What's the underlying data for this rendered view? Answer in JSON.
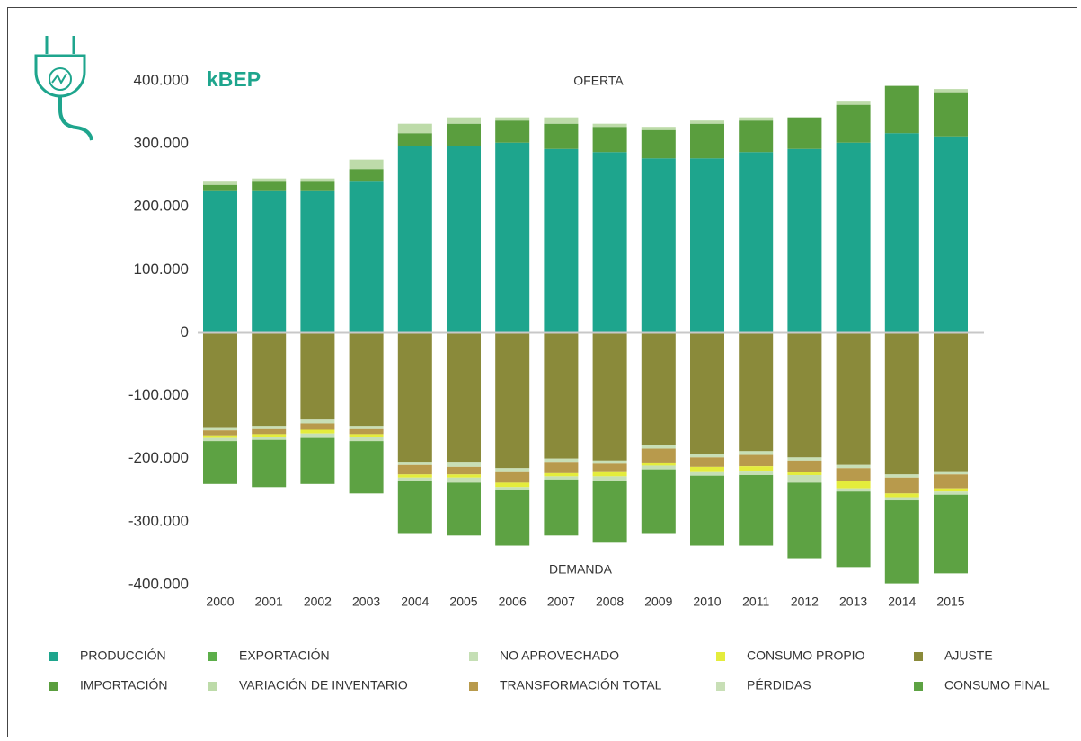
{
  "chart_data": {
    "type": "bar",
    "title": "kBEP",
    "annotations": [
      "OFERTA",
      "DEMANDA"
    ],
    "categories": [
      "2000",
      "2001",
      "2002",
      "2003",
      "2004",
      "2005",
      "2006",
      "2007",
      "2008",
      "2009",
      "2010",
      "2011",
      "2012",
      "2013",
      "2014",
      "2015"
    ],
    "ylim": [
      -400000,
      400000
    ],
    "yticks": [
      {
        "value": 400000,
        "label": "400.000"
      },
      {
        "value": 300000,
        "label": "300.000"
      },
      {
        "value": 200000,
        "label": "200.000"
      },
      {
        "value": 100000,
        "label": "100.000"
      },
      0,
      {
        "value": -100000,
        "label": "-100.000"
      },
      {
        "value": -200000,
        "label": "-200.000"
      },
      {
        "value": -300000,
        "label": "-300.000"
      },
      {
        "value": -400000,
        "label": "-400.000"
      }
    ],
    "series": [
      {
        "name": "PRODUCCIÓN",
        "color": "#1ea58d",
        "values": [
          225000,
          225000,
          225000,
          240000,
          297000,
          297000,
          302000,
          292000,
          287000,
          277000,
          277000,
          287000,
          292000,
          302000,
          317000,
          312000
        ]
      },
      {
        "name": "IMPORTACIÓN",
        "color": "#5a9e3e",
        "values": [
          10000,
          15000,
          15000,
          20000,
          20000,
          35000,
          35000,
          40000,
          40000,
          45000,
          55000,
          50000,
          50000,
          60000,
          75000,
          70000
        ]
      },
      {
        "name": "VARIACIÓN DE INVENTARIO",
        "color": "#bddba9",
        "values": [
          5000,
          5000,
          5000,
          15000,
          15000,
          10000,
          5000,
          10000,
          5000,
          5000,
          5000,
          5000,
          0,
          5000,
          0,
          5000
        ]
      },
      {
        "name": "AJUSTE",
        "color": "#8a8a3a",
        "values": [
          -150000,
          -148000,
          -138000,
          -148000,
          -205000,
          -205000,
          -215000,
          -200000,
          -203000,
          -178000,
          -193000,
          -188000,
          -198000,
          -210000,
          -225000,
          -220000
        ]
      },
      {
        "name": "PÉRDIDAS",
        "color": "#c8dfb6",
        "values": [
          -5000,
          -5000,
          -6000,
          -5000,
          -5000,
          -8000,
          -5000,
          -5000,
          -5000,
          -6000,
          -5000,
          -6000,
          -5000,
          -5000,
          -5000,
          -5000
        ]
      },
      {
        "name": "TRANSFORMACIÓN TOTAL",
        "color": "#b89a4c",
        "values": [
          -8000,
          -8000,
          -10000,
          -8000,
          -15000,
          -12000,
          -18000,
          -18000,
          -12000,
          -22000,
          -15000,
          -18000,
          -18000,
          -20000,
          -25000,
          -22000
        ]
      },
      {
        "name": "CONSUMO PROPIO",
        "color": "#e4ec3c",
        "values": [
          -4000,
          -4000,
          -6000,
          -5000,
          -5000,
          -5000,
          -7000,
          -5000,
          -8000,
          -5000,
          -7000,
          -7000,
          -5000,
          -12000,
          -6000,
          -5000
        ]
      },
      {
        "name": "NO APROVECHADO",
        "color": "#c5dfb5",
        "values": [
          -5000,
          -5000,
          -7000,
          -6000,
          -5000,
          -8000,
          -5000,
          -5000,
          -8000,
          -6000,
          -7000,
          -7000,
          -12000,
          -5000,
          -5000,
          -5000
        ]
      },
      {
        "name": "EXPORTACIÓN",
        "color": "#5cae4a",
        "values": [
          null,
          null,
          null,
          null,
          null,
          null,
          null,
          null,
          null,
          null,
          null,
          null,
          null,
          null,
          null,
          null
        ]
      },
      {
        "name": "CONSUMO FINAL",
        "color": "#5da243",
        "values": [
          -68000,
          -75000,
          -73000,
          -83000,
          -83000,
          -84000,
          -88000,
          -89000,
          -96000,
          -101000,
          -111000,
          -112000,
          -120000,
          -120000,
          -132000,
          -125000
        ]
      }
    ]
  }
}
